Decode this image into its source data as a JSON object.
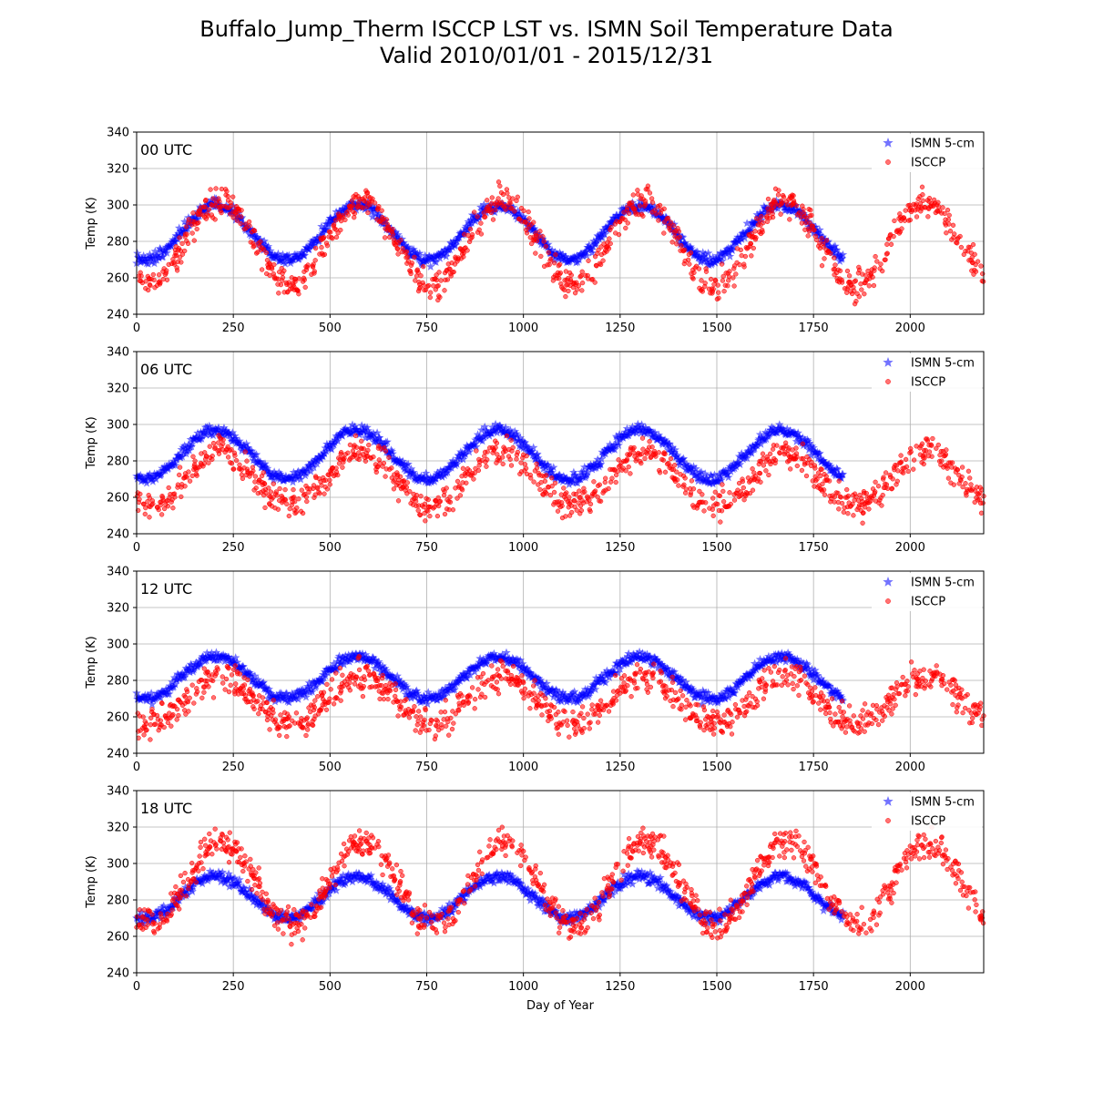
{
  "figure": {
    "title_line1": "Buffalo_Jump_Therm ISCCP LST vs. ISMN Soil Temperature Data",
    "title_line2": "Valid 2010/01/01 - 2015/12/31"
  },
  "colors": {
    "ismn": "#0000ff",
    "isccp": "#ff0000",
    "grid": "#b0b0b0"
  },
  "chart_data": [
    {
      "type": "scatter",
      "panel_label": "00 UTC",
      "xlabel": "",
      "ylabel": "Temp (K)",
      "xlim": [
        0,
        2190
      ],
      "ylim": [
        240,
        340
      ],
      "xticks": [
        0,
        250,
        500,
        750,
        1000,
        1250,
        1500,
        1750,
        2000
      ],
      "yticks": [
        240,
        260,
        280,
        300,
        320,
        340
      ],
      "grid": true,
      "legend_position": "top-right",
      "series": [
        {
          "name": "ISMN 5-cm",
          "marker": "star",
          "color": "#0000ff",
          "x_range": [
            0,
            1826
          ],
          "t_min": 270,
          "t_max": 300,
          "peak_day": 205,
          "noise": 1.5
        },
        {
          "name": "ISCCP",
          "marker": "circle",
          "color": "#ff0000",
          "x_range": [
            0,
            2190
          ],
          "t_min": 256,
          "t_max": 302,
          "peak_day": 215,
          "noise": 4
        }
      ]
    },
    {
      "type": "scatter",
      "panel_label": "06 UTC",
      "xlabel": "",
      "ylabel": "Temp (K)",
      "xlim": [
        0,
        2190
      ],
      "ylim": [
        240,
        340
      ],
      "xticks": [
        0,
        250,
        500,
        750,
        1000,
        1250,
        1500,
        1750,
        2000
      ],
      "yticks": [
        240,
        260,
        280,
        300,
        320,
        340
      ],
      "grid": true,
      "legend_position": "top-right",
      "series": [
        {
          "name": "ISMN 5-cm",
          "marker": "star",
          "color": "#0000ff",
          "x_range": [
            0,
            1826
          ],
          "t_min": 270,
          "t_max": 297,
          "peak_day": 205,
          "noise": 1.5
        },
        {
          "name": "ISCCP",
          "marker": "circle",
          "color": "#ff0000",
          "x_range": [
            0,
            2190
          ],
          "t_min": 255,
          "t_max": 285,
          "peak_day": 215,
          "noise": 4
        }
      ]
    },
    {
      "type": "scatter",
      "panel_label": "12 UTC",
      "xlabel": "",
      "ylabel": "Temp (K)",
      "xlim": [
        0,
        2190
      ],
      "ylim": [
        240,
        340
      ],
      "xticks": [
        0,
        250,
        500,
        750,
        1000,
        1250,
        1500,
        1750,
        2000
      ],
      "yticks": [
        240,
        260,
        280,
        300,
        320,
        340
      ],
      "grid": true,
      "legend_position": "top-right",
      "series": [
        {
          "name": "ISMN 5-cm",
          "marker": "star",
          "color": "#0000ff",
          "x_range": [
            0,
            1826
          ],
          "t_min": 270,
          "t_max": 293,
          "peak_day": 205,
          "noise": 1.5
        },
        {
          "name": "ISCCP",
          "marker": "circle",
          "color": "#ff0000",
          "x_range": [
            0,
            2190
          ],
          "t_min": 256,
          "t_max": 282,
          "peak_day": 215,
          "noise": 4
        }
      ]
    },
    {
      "type": "scatter",
      "panel_label": "18 UTC",
      "xlabel": "Day of Year",
      "ylabel": "Temp (K)",
      "xlim": [
        0,
        2190
      ],
      "ylim": [
        240,
        340
      ],
      "xticks": [
        0,
        250,
        500,
        750,
        1000,
        1250,
        1500,
        1750,
        2000
      ],
      "yticks": [
        240,
        260,
        280,
        300,
        320,
        340
      ],
      "grid": true,
      "legend_position": "top-right",
      "series": [
        {
          "name": "ISMN 5-cm",
          "marker": "star",
          "color": "#0000ff",
          "x_range": [
            0,
            1826
          ],
          "t_min": 270,
          "t_max": 293,
          "peak_day": 205,
          "noise": 1.5
        },
        {
          "name": "ISCCP",
          "marker": "circle",
          "color": "#ff0000",
          "x_range": [
            0,
            2190
          ],
          "t_min": 266,
          "t_max": 312,
          "peak_day": 220,
          "noise": 4
        }
      ]
    }
  ]
}
